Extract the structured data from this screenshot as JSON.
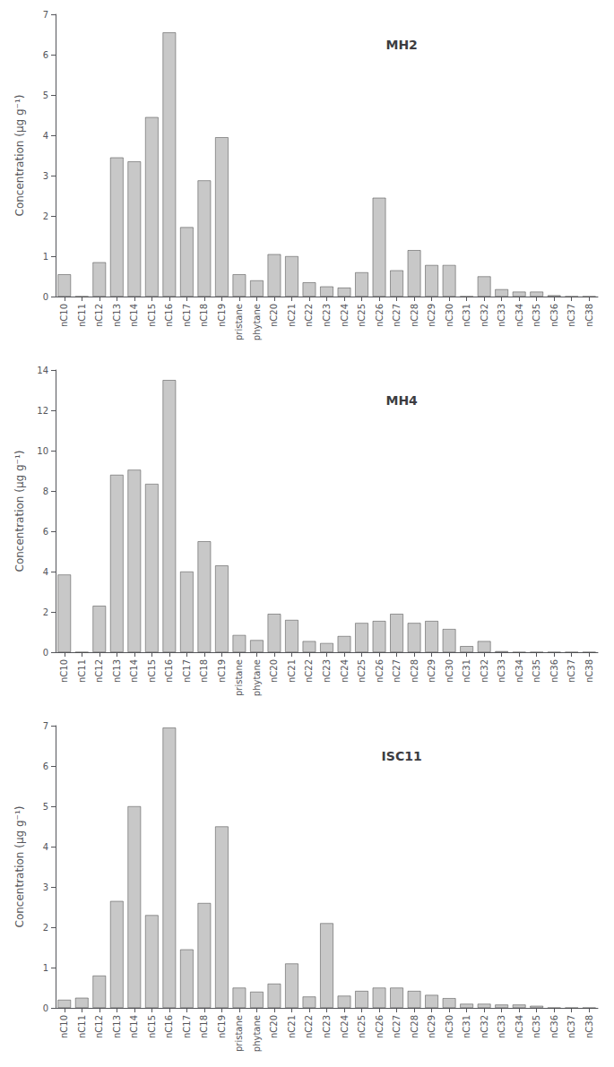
{
  "chart_data": [
    {
      "type": "bar",
      "title": "MH2",
      "ylabel": "Concentration (μg g⁻¹)",
      "categories": [
        "nC10",
        "nC11",
        "nC12",
        "nC13",
        "nC14",
        "nC15",
        "nC16",
        "nC17",
        "nC18",
        "nC19",
        "pristane",
        "phytane",
        "nC20",
        "nC21",
        "nC22",
        "nC23",
        "nC24",
        "nC25",
        "nC26",
        "nC27",
        "nC28",
        "nC29",
        "nC30",
        "nC31",
        "nC32",
        "nC33",
        "nC34",
        "nC35",
        "nC36",
        "nC37",
        "nC38"
      ],
      "values": [
        0.55,
        0.0,
        0.85,
        3.45,
        3.35,
        4.45,
        6.55,
        1.72,
        2.88,
        3.95,
        0.55,
        0.4,
        1.05,
        1.0,
        0.35,
        0.25,
        0.22,
        0.6,
        2.45,
        0.65,
        1.15,
        0.78,
        0.78,
        0.0,
        0.5,
        0.18,
        0.12,
        0.12,
        0.03,
        0.0,
        0.0
      ],
      "color": "#c8c8c8",
      "ylim": [
        0,
        7
      ],
      "yticks": [
        0,
        1,
        2,
        3,
        4,
        5,
        6,
        7
      ],
      "grid": false
    },
    {
      "type": "bar",
      "title": "MH4",
      "ylabel": "Concentration (μg g⁻¹)",
      "categories": [
        "nC10",
        "nC11",
        "nC12",
        "nC13",
        "nC14",
        "nC15",
        "nC16",
        "nC17",
        "nC18",
        "nC19",
        "pristane",
        "phytane",
        "nC20",
        "nC21",
        "nC22",
        "nC23",
        "nC24",
        "nC25",
        "nC26",
        "nC27",
        "nC28",
        "nC29",
        "nC30",
        "nC31",
        "nC32",
        "nC33",
        "nC34",
        "nC35",
        "nC36",
        "nC37",
        "nC38"
      ],
      "values": [
        3.85,
        0.0,
        2.3,
        8.8,
        9.05,
        8.35,
        13.5,
        4.0,
        5.5,
        4.3,
        0.85,
        0.6,
        1.9,
        1.6,
        0.55,
        0.45,
        0.8,
        1.45,
        1.55,
        1.9,
        1.45,
        1.55,
        1.15,
        0.3,
        0.55,
        0.05,
        0.0,
        0.0,
        0.0,
        0.0,
        0.0
      ],
      "color": "#c8c8c8",
      "ylim": [
        0,
        14
      ],
      "yticks": [
        0,
        2,
        4,
        6,
        8,
        10,
        12,
        14
      ],
      "grid": false
    },
    {
      "type": "bar",
      "title": "ISC11",
      "ylabel": "Concentration (μg g⁻¹)",
      "categories": [
        "nC10",
        "nC11",
        "nC12",
        "nC13",
        "nC14",
        "nC15",
        "nC16",
        "nC17",
        "nC18",
        "nC19",
        "pristane",
        "phytane",
        "nC20",
        "nC21",
        "nC22",
        "nC23",
        "nC24",
        "nC25",
        "nC26",
        "nC27",
        "nC28",
        "nC29",
        "nC30",
        "nC31",
        "nC32",
        "nC33",
        "nC34",
        "nC35",
        "nC36",
        "nC37",
        "nC38"
      ],
      "values": [
        0.2,
        0.25,
        0.8,
        2.65,
        5.0,
        2.3,
        6.95,
        1.45,
        2.6,
        4.5,
        0.5,
        0.4,
        0.6,
        1.1,
        0.28,
        2.1,
        0.3,
        0.42,
        0.5,
        0.5,
        0.42,
        0.32,
        0.24,
        0.1,
        0.1,
        0.08,
        0.08,
        0.05,
        0.0,
        0.0,
        0.0
      ],
      "color": "#c8c8c8",
      "ylim": [
        0,
        7
      ],
      "yticks": [
        0,
        1,
        2,
        3,
        4,
        5,
        6,
        7
      ],
      "grid": false
    }
  ]
}
